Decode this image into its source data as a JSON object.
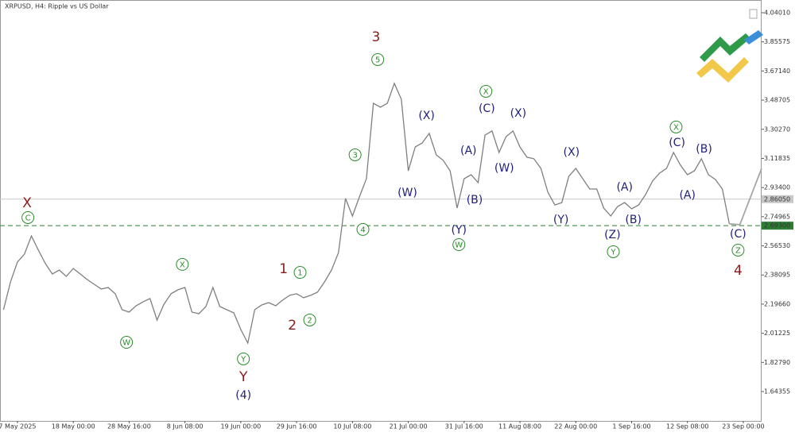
{
  "chart_data": {
    "type": "line",
    "title": "XRPUSD, H4:  Ripple vs US Dollar",
    "xlim": [
      -20,
      853
    ],
    "xticks": [
      {
        "value": 0,
        "label": "7 May 2025"
      },
      {
        "value": 64,
        "label": "18 May 00:00"
      },
      {
        "value": 128,
        "label": "28 May 16:00"
      },
      {
        "value": 192,
        "label": "8 Jun 08:00"
      },
      {
        "value": 256,
        "label": "19 Jun 00:00"
      },
      {
        "value": 320,
        "label": "29 Jun 16:00"
      },
      {
        "value": 384,
        "label": "10 Jul 08:00"
      },
      {
        "value": 448,
        "label": "21 Jul 00:00"
      },
      {
        "value": 512,
        "label": "31 Jul 16:00"
      },
      {
        "value": 576,
        "label": "11 Aug 08:00"
      },
      {
        "value": 640,
        "label": "22 Aug 00:00"
      },
      {
        "value": 704,
        "label": "1 Sep 16:00"
      },
      {
        "value": 768,
        "label": "12 Sep 08:00"
      },
      {
        "value": 832,
        "label": "23 Sep 00:00"
      }
    ],
    "ylim": [
      1.4577,
      4.1205
    ],
    "yticks": [
      {
        "value": 4.0401,
        "label": "4.04010"
      },
      3.85575,
      {
        "value": 3.6714,
        "label": "3.67140"
      },
      3.48705,
      {
        "value": 3.3027,
        "label": "3.30270"
      },
      3.11835,
      {
        "value": 2.934,
        "label": "2.93400"
      },
      2.74965,
      {
        "value": 2.5653,
        "label": "2.56530"
      },
      2.38095,
      {
        "value": 2.1966,
        "label": "2.19660"
      },
      2.01225,
      {
        "value": 1.8279,
        "label": "1.82790"
      },
      1.64355
    ],
    "series": [
      {
        "color": "#7f7f7f",
        "x": [
          -16,
          -8,
          0,
          8,
          16,
          24,
          32,
          40,
          48,
          56,
          64,
          72,
          80,
          88,
          96,
          104,
          112,
          120,
          128,
          136,
          144,
          152,
          160,
          168,
          176,
          184,
          192,
          200,
          208,
          216,
          224,
          232,
          240,
          248,
          256,
          264,
          272,
          280,
          288,
          296,
          304,
          312,
          320,
          328,
          336,
          344,
          352,
          360,
          368,
          376,
          384,
          392,
          400,
          408,
          416,
          424,
          432,
          440,
          448,
          456,
          464,
          472,
          480,
          488,
          496,
          504,
          512,
          520,
          528,
          536,
          544,
          552,
          560,
          568,
          576,
          584,
          592,
          600,
          608,
          616,
          624,
          632,
          640,
          648,
          656,
          664,
          672,
          680,
          688,
          696,
          704,
          712,
          720,
          728,
          736,
          744,
          752,
          760,
          768,
          776,
          784,
          792,
          800,
          808,
          816
        ],
        "values": [
          2.161,
          2.337,
          2.463,
          2.513,
          2.628,
          2.538,
          2.453,
          2.387,
          2.412,
          2.372,
          2.422,
          2.387,
          2.352,
          2.322,
          2.292,
          2.302,
          2.262,
          2.161,
          2.146,
          2.186,
          2.211,
          2.232,
          2.096,
          2.196,
          2.262,
          2.287,
          2.302,
          2.146,
          2.136,
          2.181,
          2.302,
          2.181,
          2.161,
          2.141,
          2.036,
          1.95,
          2.161,
          2.191,
          2.206,
          2.186,
          2.222,
          2.252,
          2.262,
          2.237,
          2.252,
          2.272,
          2.337,
          2.412,
          2.523,
          2.865,
          2.754,
          2.875,
          2.99,
          3.467,
          3.442,
          3.467,
          3.593,
          3.493,
          3.04,
          3.191,
          3.216,
          3.277,
          3.141,
          3.106,
          3.04,
          2.804,
          2.99,
          3.015,
          2.965,
          3.266,
          3.292,
          3.156,
          3.256,
          3.292,
          3.191,
          3.126,
          3.116,
          3.055,
          2.905,
          2.824,
          2.839,
          3.005,
          3.055,
          2.99,
          2.925,
          2.925,
          2.804,
          2.754,
          2.814,
          2.839,
          2.799,
          2.824,
          2.89,
          2.975,
          3.025,
          3.055,
          3.156,
          3.076,
          3.015,
          3.04,
          3.116,
          3.015,
          2.985,
          2.925,
          2.704
        ]
      },
      {
        "color": "#a6a6a6",
        "x": [
          816,
          828,
          853
        ],
        "values": [
          2.704,
          2.699,
          3.055
        ]
      }
    ],
    "price_lines": [
      {
        "value": 2.8605,
        "label": "2.86050",
        "color": "#c8c8c8",
        "dashed": false
      },
      {
        "value": 2.693,
        "label": "2.69300",
        "color": "#2e7d32",
        "dashed": true
      }
    ],
    "annotations": [
      {
        "x": 11,
        "y": 2.834,
        "text": "X",
        "color": "#8b1a1a",
        "circled": false
      },
      {
        "x": 12,
        "y": 2.744,
        "text": "C",
        "color": "#2a8c2a",
        "circled": true
      },
      {
        "x": 125,
        "y": 1.955,
        "text": "W",
        "color": "#2a8c2a",
        "circled": true
      },
      {
        "x": 189,
        "y": 2.448,
        "text": "X",
        "color": "#2a8c2a",
        "circled": true
      },
      {
        "x": 259,
        "y": 1.85,
        "text": "Y",
        "color": "#2a8c2a",
        "circled": true
      },
      {
        "x": 259,
        "y": 1.734,
        "text": "Y",
        "color": "#8b1a1a",
        "circled": false
      },
      {
        "x": 259,
        "y": 1.619,
        "text": "(4)",
        "color": "#1f1f7a",
        "circled": false
      },
      {
        "x": 305,
        "y": 2.417,
        "text": "1",
        "color": "#8b1a1a",
        "circled": false
      },
      {
        "x": 324,
        "y": 2.397,
        "text": "1",
        "color": "#2a8c2a",
        "circled": true
      },
      {
        "x": 315,
        "y": 2.061,
        "text": "2",
        "color": "#8b1a1a",
        "circled": false
      },
      {
        "x": 335,
        "y": 2.096,
        "text": "2",
        "color": "#2a8c2a",
        "circled": true
      },
      {
        "x": 387,
        "y": 3.141,
        "text": "3",
        "color": "#2a8c2a",
        "circled": true
      },
      {
        "x": 396,
        "y": 2.669,
        "text": "4",
        "color": "#2a8c2a",
        "circled": true
      },
      {
        "x": 411,
        "y": 3.884,
        "text": "3",
        "color": "#8b1a1a",
        "circled": false
      },
      {
        "x": 413,
        "y": 3.744,
        "text": "5",
        "color": "#2a8c2a",
        "circled": true
      },
      {
        "x": 469,
        "y": 3.387,
        "text": "(X)",
        "color": "#1f1f7a",
        "circled": false
      },
      {
        "x": 447,
        "y": 2.9,
        "text": "(W)",
        "color": "#1f1f7a",
        "circled": false
      },
      {
        "x": 517,
        "y": 3.166,
        "text": "(A)",
        "color": "#1f1f7a",
        "circled": false
      },
      {
        "x": 524,
        "y": 2.854,
        "text": "(B)",
        "color": "#1f1f7a",
        "circled": false
      },
      {
        "x": 506,
        "y": 2.664,
        "text": "(Y)",
        "color": "#1f1f7a",
        "circled": false
      },
      {
        "x": 506,
        "y": 2.573,
        "text": "W",
        "color": "#2a8c2a",
        "circled": true
      },
      {
        "x": 537,
        "y": 3.543,
        "text": "X",
        "color": "#2a8c2a",
        "circled": true
      },
      {
        "x": 538,
        "y": 3.432,
        "text": "(C)",
        "color": "#1f1f7a",
        "circled": false
      },
      {
        "x": 558,
        "y": 3.055,
        "text": "(W)",
        "color": "#1f1f7a",
        "circled": false
      },
      {
        "x": 574,
        "y": 3.402,
        "text": "(X)",
        "color": "#1f1f7a",
        "circled": false
      },
      {
        "x": 635,
        "y": 3.156,
        "text": "(X)",
        "color": "#1f1f7a",
        "circled": false
      },
      {
        "x": 623,
        "y": 2.729,
        "text": "(Y)",
        "color": "#1f1f7a",
        "circled": false
      },
      {
        "x": 696,
        "y": 2.935,
        "text": "(A)",
        "color": "#1f1f7a",
        "circled": false
      },
      {
        "x": 706,
        "y": 2.729,
        "text": "(B)",
        "color": "#1f1f7a",
        "circled": false
      },
      {
        "x": 682,
        "y": 2.633,
        "text": "(Z)",
        "color": "#1f1f7a",
        "circled": false
      },
      {
        "x": 683,
        "y": 2.528,
        "text": "Y",
        "color": "#2a8c2a",
        "circled": true
      },
      {
        "x": 755,
        "y": 3.317,
        "text": "X",
        "color": "#2a8c2a",
        "circled": true
      },
      {
        "x": 756,
        "y": 3.216,
        "text": "(C)",
        "color": "#1f1f7a",
        "circled": false
      },
      {
        "x": 787,
        "y": 3.176,
        "text": "(B)",
        "color": "#1f1f7a",
        "circled": false
      },
      {
        "x": 768,
        "y": 2.885,
        "text": "(A)",
        "color": "#1f1f7a",
        "circled": false
      },
      {
        "x": 826,
        "y": 2.638,
        "text": "(C)",
        "color": "#1f1f7a",
        "circled": false
      },
      {
        "x": 826,
        "y": 2.538,
        "text": "Z",
        "color": "#2a8c2a",
        "circled": true
      },
      {
        "x": 826,
        "y": 2.407,
        "text": "4",
        "color": "#8b1a1a",
        "circled": false
      }
    ]
  }
}
